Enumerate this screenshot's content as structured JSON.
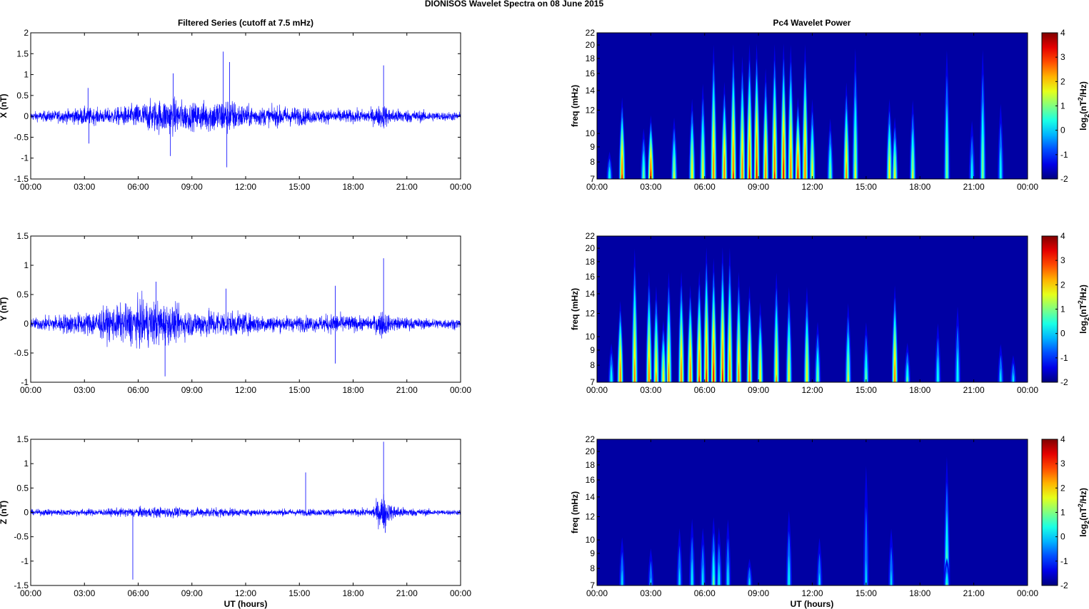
{
  "figure": {
    "title": "DIONISOS Wavelet Spectra on 08 June      2015",
    "left_column_title": "Filtered Series (cutoff at 7.5 mHz)",
    "right_column_title": "Pc4 Wavelet Power",
    "xlabel": "UT (hours)",
    "trace_color": "#0000ff"
  },
  "chart_data": [
    {
      "type": "line",
      "component": "X",
      "ylabel": "X (nT)",
      "xlim": [
        0,
        24
      ],
      "ylim": [
        -1.5,
        2
      ],
      "xticks": [
        "00:00",
        "03:00",
        "06:00",
        "09:00",
        "12:00",
        "15:00",
        "18:00",
        "21:00",
        "00:00"
      ],
      "yticks": [
        -1.5,
        -1,
        -0.5,
        0,
        0.5,
        1,
        1.5,
        2
      ],
      "envelope": {
        "hours": [
          0,
          1,
          2,
          3,
          4,
          5,
          6,
          7,
          8,
          9,
          10,
          11,
          12,
          13,
          14,
          15,
          16,
          17,
          18,
          19,
          19.7,
          20,
          21,
          22,
          23,
          24
        ],
        "amplitude": [
          0.12,
          0.15,
          0.18,
          0.25,
          0.2,
          0.25,
          0.35,
          0.45,
          0.5,
          0.35,
          0.45,
          0.5,
          0.3,
          0.25,
          0.28,
          0.25,
          0.18,
          0.2,
          0.18,
          0.2,
          0.35,
          0.22,
          0.18,
          0.15,
          0.12,
          0.12
        ]
      },
      "spikes": [
        {
          "hour": 10.75,
          "value": 1.55
        },
        {
          "hour": 11.1,
          "value": 1.3
        },
        {
          "hour": 7.95,
          "value": 1.03
        },
        {
          "hour": 19.7,
          "value": 1.22
        },
        {
          "hour": 10.95,
          "value": -1.22
        },
        {
          "hour": 7.8,
          "value": -0.95
        },
        {
          "hour": 3.2,
          "value": 0.68
        },
        {
          "hour": 3.25,
          "value": -0.65
        }
      ]
    },
    {
      "type": "line",
      "component": "Y",
      "ylabel": "Y (nT)",
      "xlim": [
        0,
        24
      ],
      "ylim": [
        -1,
        1.5
      ],
      "xticks": [
        "00:00",
        "03:00",
        "06:00",
        "09:00",
        "12:00",
        "15:00",
        "18:00",
        "21:00",
        "00:00"
      ],
      "yticks": [
        -1,
        -0.5,
        0,
        0.5,
        1,
        1.5
      ],
      "envelope": {
        "hours": [
          0,
          1,
          2,
          3,
          4,
          5,
          6,
          7,
          8,
          9,
          10,
          11,
          12,
          13,
          14,
          15,
          16,
          17,
          18,
          19,
          19.7,
          20,
          21,
          22,
          23,
          24
        ],
        "amplitude": [
          0.1,
          0.15,
          0.2,
          0.22,
          0.3,
          0.35,
          0.45,
          0.45,
          0.35,
          0.25,
          0.28,
          0.25,
          0.2,
          0.18,
          0.15,
          0.15,
          0.15,
          0.2,
          0.15,
          0.12,
          0.3,
          0.15,
          0.12,
          0.1,
          0.1,
          0.1
        ]
      },
      "spikes": [
        {
          "hour": 19.7,
          "value": 1.12
        },
        {
          "hour": 7.0,
          "value": 0.72
        },
        {
          "hour": 7.5,
          "value": -0.9
        },
        {
          "hour": 17.0,
          "value": 0.65
        },
        {
          "hour": 17.0,
          "value": -0.68
        },
        {
          "hour": 10.9,
          "value": 0.6
        }
      ]
    },
    {
      "type": "line",
      "component": "Z",
      "ylabel": "Z (nT)",
      "xlim": [
        0,
        24
      ],
      "ylim": [
        -1.5,
        1.5
      ],
      "xticks": [
        "00:00",
        "03:00",
        "06:00",
        "09:00",
        "12:00",
        "15:00",
        "18:00",
        "21:00",
        "00:00"
      ],
      "yticks": [
        -1.5,
        -1,
        -0.5,
        0,
        0.5,
        1,
        1.5
      ],
      "envelope": {
        "hours": [
          0,
          1,
          2,
          3,
          4,
          5,
          6,
          7,
          8,
          9,
          10,
          11,
          12,
          13,
          14,
          15,
          16,
          17,
          18,
          19,
          19.7,
          20,
          21,
          22,
          23,
          24
        ],
        "amplitude": [
          0.06,
          0.08,
          0.08,
          0.08,
          0.08,
          0.1,
          0.12,
          0.12,
          0.12,
          0.1,
          0.12,
          0.1,
          0.08,
          0.08,
          0.08,
          0.08,
          0.08,
          0.08,
          0.08,
          0.1,
          0.45,
          0.2,
          0.1,
          0.08,
          0.06,
          0.06
        ]
      },
      "spikes": [
        {
          "hour": 19.7,
          "value": 1.45
        },
        {
          "hour": 15.35,
          "value": 0.82
        },
        {
          "hour": 5.7,
          "value": -1.38
        },
        {
          "hour": 19.8,
          "value": -0.42
        }
      ]
    },
    {
      "type": "heatmap",
      "component": "X",
      "ylabel": "freq (mHz)",
      "xlim": [
        0,
        24
      ],
      "ylim": [
        7,
        22
      ],
      "xticks": [
        "00:00",
        "03:00",
        "06:00",
        "09:00",
        "12:00",
        "15:00",
        "18:00",
        "21:00",
        "00:00"
      ],
      "yticks": [
        7,
        8,
        9,
        10,
        12,
        14,
        16,
        18,
        20,
        22
      ],
      "colorbar": {
        "label_base": "log",
        "label_sub": "2",
        "label_mid": "(nT",
        "label_sup": "2",
        "label_end": "/Hz)",
        "range": [
          -2,
          4
        ],
        "ticks": [
          -2,
          -1,
          0,
          1,
          2,
          3,
          4
        ],
        "colormap": "jet"
      },
      "bursts": [
        [
          1.4,
          3.5,
          14
        ],
        [
          3.0,
          3.8,
          12
        ],
        [
          4.3,
          2.0,
          12
        ],
        [
          5.3,
          2.6,
          14
        ],
        [
          5.9,
          2.4,
          16
        ],
        [
          6.5,
          3.2,
          22
        ],
        [
          7.1,
          3.4,
          16
        ],
        [
          7.6,
          3.5,
          22
        ],
        [
          8.1,
          3.2,
          20
        ],
        [
          8.5,
          3.6,
          22
        ],
        [
          8.9,
          3.8,
          22
        ],
        [
          9.4,
          3.3,
          18
        ],
        [
          9.9,
          3.5,
          22
        ],
        [
          10.4,
          3.8,
          22
        ],
        [
          10.8,
          3.2,
          22
        ],
        [
          11.2,
          3.8,
          14
        ],
        [
          11.6,
          3.4,
          22
        ],
        [
          12.0,
          2.4,
          14
        ],
        [
          13.0,
          1.6,
          12
        ],
        [
          13.9,
          3.0,
          16
        ],
        [
          14.4,
          2.0,
          22
        ],
        [
          16.3,
          2.5,
          14
        ],
        [
          16.6,
          2.2,
          12
        ],
        [
          17.6,
          2.0,
          14
        ],
        [
          19.5,
          1.6,
          22
        ],
        [
          20.9,
          0.9,
          12
        ],
        [
          21.5,
          1.7,
          22
        ],
        [
          22.5,
          0.9,
          14
        ],
        [
          2.6,
          1.5,
          11
        ],
        [
          0.7,
          1.0,
          9
        ]
      ]
    },
    {
      "type": "heatmap",
      "component": "Y",
      "ylabel": "freq (mHz)",
      "xlim": [
        0,
        24
      ],
      "ylim": [
        7,
        22
      ],
      "xticks": [
        "00:00",
        "03:00",
        "06:00",
        "09:00",
        "12:00",
        "15:00",
        "18:00",
        "21:00",
        "00:00"
      ],
      "yticks": [
        7,
        8,
        9,
        10,
        12,
        14,
        16,
        18,
        20,
        22
      ],
      "colorbar": {
        "label_base": "log",
        "label_sub": "2",
        "label_mid": "(nT",
        "label_sup": "2",
        "label_end": "/Hz)",
        "range": [
          -2,
          4
        ],
        "ticks": [
          -2,
          -1,
          0,
          1,
          2,
          3,
          4
        ],
        "colormap": "jet"
      },
      "bursts": [
        [
          1.3,
          3.4,
          14
        ],
        [
          2.1,
          3.0,
          22
        ],
        [
          2.9,
          3.2,
          18
        ],
        [
          3.3,
          2.8,
          16
        ],
        [
          4.0,
          3.0,
          18
        ],
        [
          4.7,
          3.2,
          18
        ],
        [
          5.2,
          3.4,
          16
        ],
        [
          5.7,
          3.5,
          18
        ],
        [
          6.1,
          3.6,
          22
        ],
        [
          6.5,
          3.8,
          20
        ],
        [
          7.0,
          3.6,
          22
        ],
        [
          7.4,
          3.2,
          22
        ],
        [
          7.9,
          3.0,
          18
        ],
        [
          8.5,
          3.2,
          16
        ],
        [
          9.1,
          2.5,
          14
        ],
        [
          10.0,
          2.7,
          18
        ],
        [
          10.7,
          2.4,
          16
        ],
        [
          11.7,
          2.5,
          16
        ],
        [
          12.3,
          1.6,
          12
        ],
        [
          14.0,
          2.0,
          14
        ],
        [
          15.0,
          1.4,
          12
        ],
        [
          16.6,
          3.2,
          16
        ],
        [
          17.3,
          1.2,
          10
        ],
        [
          19.0,
          1.0,
          12
        ],
        [
          20.1,
          1.0,
          14
        ],
        [
          22.5,
          0.7,
          10
        ],
        [
          23.2,
          0.7,
          9
        ],
        [
          3.7,
          2.4,
          12
        ],
        [
          0.8,
          1.0,
          10
        ]
      ]
    },
    {
      "type": "heatmap",
      "component": "Z",
      "ylabel": "freq (mHz)",
      "xlim": [
        0,
        24
      ],
      "ylim": [
        7,
        22
      ],
      "xticks": [
        "00:00",
        "03:00",
        "06:00",
        "09:00",
        "12:00",
        "15:00",
        "18:00",
        "21:00",
        "00:00"
      ],
      "yticks": [
        7,
        8,
        9,
        10,
        12,
        14,
        16,
        18,
        20,
        22
      ],
      "colorbar": {
        "label_base": "log",
        "label_sub": "2",
        "label_mid": "(nT",
        "label_sup": "2",
        "label_end": "/Hz)",
        "range": [
          -2,
          4
        ],
        "ticks": [
          -2,
          -1,
          0,
          1,
          2,
          3,
          4
        ],
        "colormap": "jet"
      },
      "bursts": [
        [
          1.4,
          0.6,
          11
        ],
        [
          3.0,
          0.4,
          10
        ],
        [
          4.6,
          0.6,
          12
        ],
        [
          5.3,
          0.8,
          13
        ],
        [
          5.9,
          0.7,
          12
        ],
        [
          6.5,
          1.2,
          13
        ],
        [
          6.8,
          0.8,
          12
        ],
        [
          7.3,
          0.7,
          13
        ],
        [
          8.5,
          0.6,
          9
        ],
        [
          10.7,
          0.8,
          14
        ],
        [
          12.4,
          0.5,
          11
        ],
        [
          15.0,
          0.4,
          22
        ],
        [
          16.4,
          0.5,
          12
        ],
        [
          19.5,
          1.6,
          22
        ],
        [
          19.5,
          1.1,
          9
        ]
      ]
    }
  ]
}
